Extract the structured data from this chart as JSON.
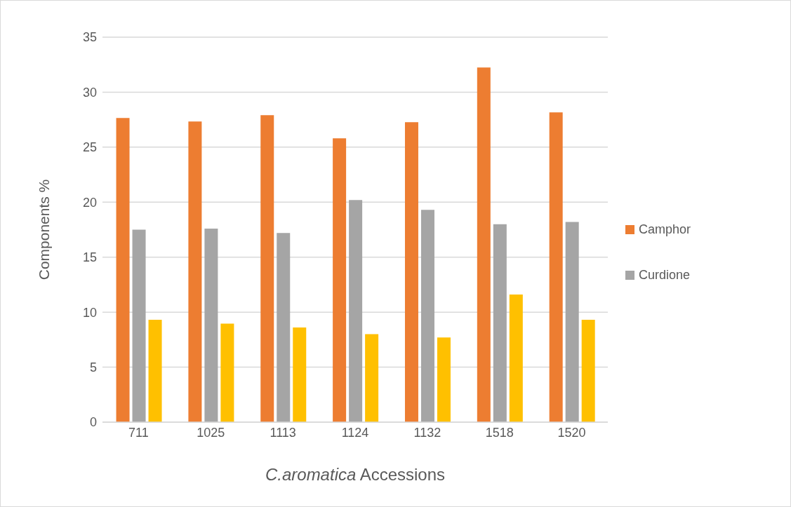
{
  "chart_data": {
    "type": "bar",
    "xlabel": "C.aromatica Accessions",
    "ylabel": "Components %",
    "categories": [
      "711",
      "1025",
      "1113",
      "1124",
      "1132",
      "1518",
      "1520"
    ],
    "series": [
      {
        "name": "Camphor",
        "color": "#ed7d31",
        "values": [
          27.65,
          27.33,
          27.9,
          25.8,
          27.27,
          32.25,
          28.16
        ]
      },
      {
        "name": "Curdione",
        "color": "#a5a5a5",
        "values": [
          17.5,
          17.6,
          17.2,
          20.2,
          19.3,
          18.0,
          18.2
        ]
      },
      {
        "color": "#ffc000",
        "values": [
          9.3,
          8.95,
          8.6,
          8.0,
          7.7,
          11.6,
          9.3
        ]
      }
    ],
    "ylim": [
      0,
      35
    ],
    "yticks": [
      0,
      5,
      10,
      15,
      20,
      25,
      30,
      35
    ],
    "grid": "y",
    "legend": "right"
  }
}
